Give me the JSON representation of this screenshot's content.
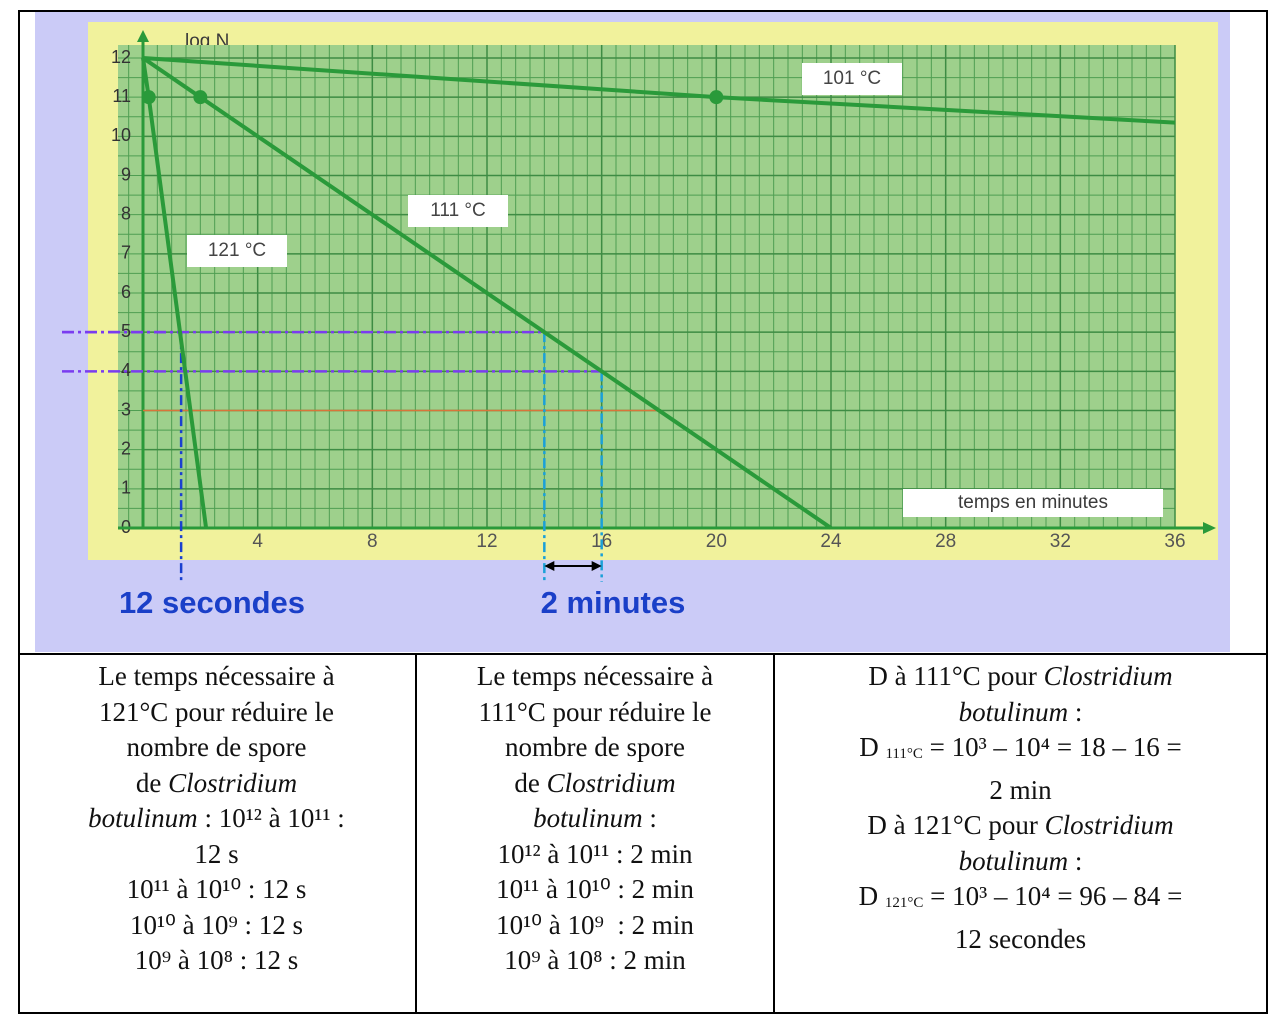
{
  "chart_data": {
    "type": "line",
    "y_label": "log N",
    "x_label": "temps en minutes",
    "xlim": [
      0,
      36
    ],
    "ylim": [
      0,
      12
    ],
    "xticks": [
      4,
      8,
      12,
      16,
      20,
      24,
      28,
      32,
      36
    ],
    "yticks": [
      0,
      1,
      2,
      3,
      4,
      5,
      6,
      7,
      8,
      9,
      10,
      11,
      12
    ],
    "grid": true,
    "series": [
      {
        "name": "101 °C",
        "color": "#2a9a3a",
        "x": [
          0,
          20,
          36
        ],
        "values": [
          12,
          11,
          10.35
        ]
      },
      {
        "name": "111 °C",
        "color": "#2a9a3a",
        "x": [
          0,
          2,
          24
        ],
        "values": [
          12,
          11,
          0
        ]
      },
      {
        "name": "121 °C",
        "color": "#2a9a3a",
        "x": [
          0,
          0.2,
          2.2
        ],
        "values": [
          12,
          11,
          0
        ]
      }
    ],
    "guides": [
      {
        "x": 1.33,
        "y": 5,
        "color": "#1a40d0"
      },
      {
        "x": 14,
        "y": 5,
        "color": "#1aa0d8"
      },
      {
        "x": 16,
        "y": 4,
        "color": "#1aa0d8"
      }
    ],
    "annotations": [
      "12 secondes",
      "2 minutes"
    ]
  },
  "table": {
    "cells": [
      [
        [
          "Le temps nécessaire à"
        ],
        [
          "121°C pour réduire le"
        ],
        [
          "nombre de spore"
        ],
        [
          "de ",
          {
            "italic": "Clostridium"
          }
        ],
        [
          {
            "italic": "botulinum"
          },
          " : 10¹² à 10¹¹ :"
        ],
        [
          "12 s"
        ],
        [
          "10¹¹ à 10¹⁰ : 12 s"
        ],
        [
          "10¹⁰ à 10⁹ : 12 s"
        ],
        [
          "10⁹ à 10⁸ : 12 s"
        ]
      ],
      [
        [
          "Le temps nécessaire à"
        ],
        [
          "111°C pour réduire le"
        ],
        [
          "nombre de spore"
        ],
        [
          "de ",
          {
            "italic": "Clostridium"
          }
        ],
        [
          {
            "italic": "botulinum"
          },
          " :"
        ],
        [
          "10¹² à 10¹¹ : 2 min"
        ],
        [
          "10¹¹ à 10¹⁰ : 2 min"
        ],
        [
          "10¹⁰ à 10⁹  : 2 min"
        ],
        [
          "10⁹ à 10⁸ : 2 min"
        ]
      ],
      [
        [
          "D à 111°C pour ",
          {
            "italic": "Clostridium"
          }
        ],
        [
          {
            "italic": "botulinum"
          },
          " :"
        ],
        [
          "D ",
          {
            "sub": "111°C"
          },
          " = 10³ – 10⁴ = 18 – 16 ="
        ],
        [
          "2 min"
        ],
        [
          "D à 121°C pour ",
          {
            "italic": "Clostridium"
          }
        ],
        [
          {
            "italic": "botulinum"
          },
          " :"
        ],
        [
          "D ",
          {
            "sub": "121°C"
          },
          " = 10³ – 10⁴ = 96 – 84 ="
        ],
        [
          "12 secondes"
        ]
      ]
    ]
  }
}
